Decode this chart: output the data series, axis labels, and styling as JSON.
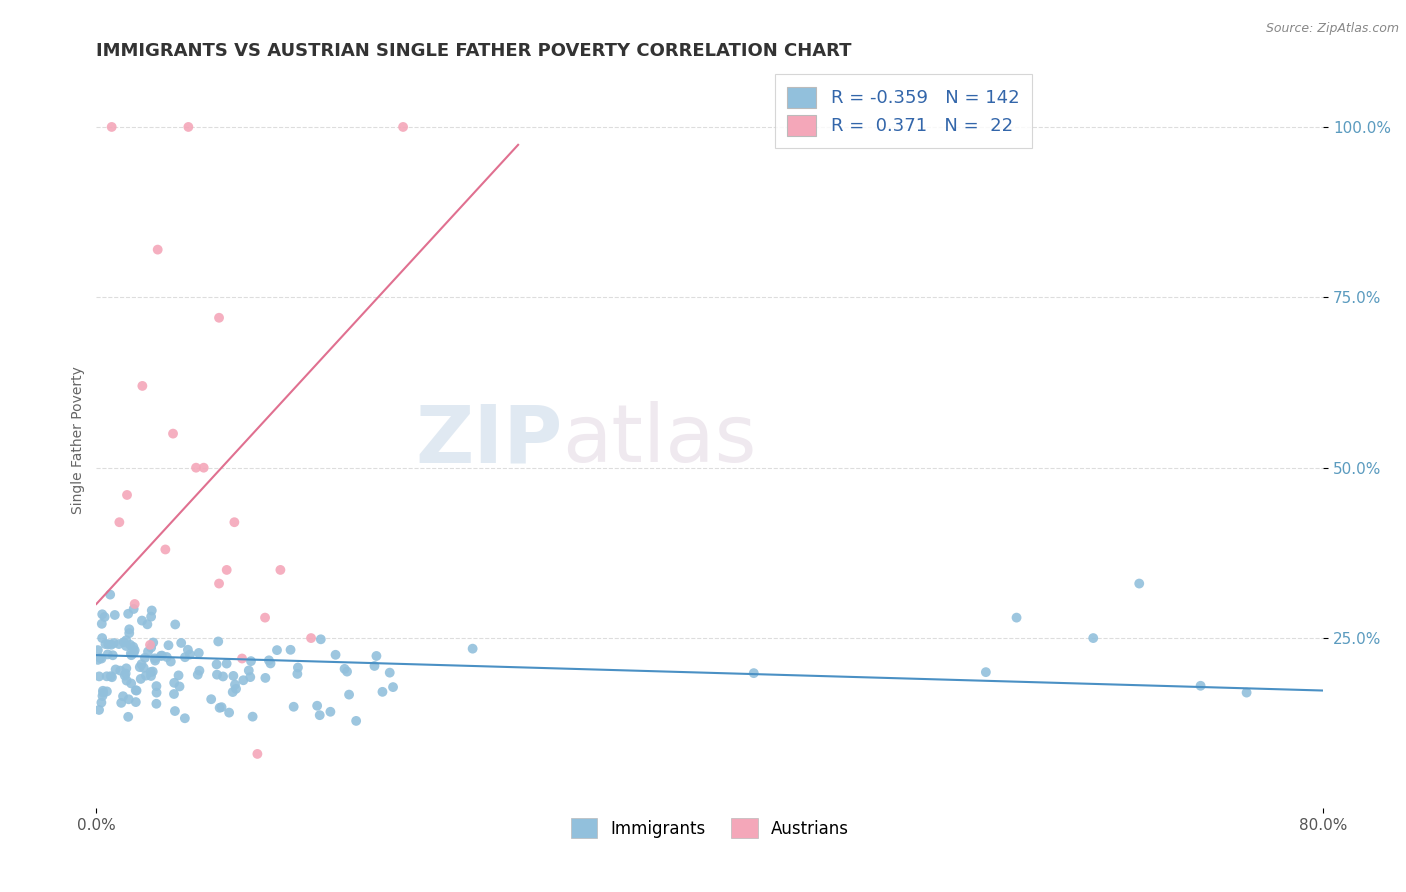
{
  "title": "IMMIGRANTS VS AUSTRIAN SINGLE FATHER POVERTY CORRELATION CHART",
  "source": "Source: ZipAtlas.com",
  "ylabel": "Single Father Poverty",
  "legend_immigrants": "Immigrants",
  "legend_austrians": "Austrians",
  "R_immigrants": -0.359,
  "N_immigrants": 142,
  "R_austrians": 0.371,
  "N_austrians": 22,
  "blue_color": "#92C0DC",
  "pink_color": "#F4A7B9",
  "blue_line_color": "#4A90C4",
  "pink_line_color": "#E07090",
  "background_color": "#FFFFFF",
  "title_color": "#333333",
  "title_fontsize": 13,
  "ytick_color": "#5B9BBF",
  "xtick_color": "#555555",
  "seed": 77,
  "xlim": [
    0.0,
    0.8
  ],
  "ylim": [
    0.0,
    1.08
  ],
  "yticks": [
    0.25,
    0.5,
    0.75,
    1.0
  ],
  "ytick_labels": [
    "25.0%",
    "50.0%",
    "75.0%",
    "100.0%"
  ],
  "xticks": [
    0.0,
    0.8
  ],
  "xtick_labels": [
    "0.0%",
    "80.0%"
  ],
  "watermark_zip": "ZIP",
  "watermark_atlas": "atlas",
  "grid_color": "#DDDDDD"
}
